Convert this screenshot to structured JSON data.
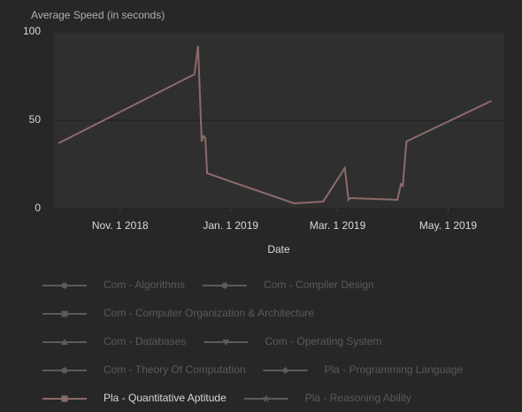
{
  "chart_data": {
    "type": "line",
    "title": "Average Speed (in seconds)",
    "x_label": "Date",
    "x": [
      "2018-09-28",
      "2018-12-12",
      "2018-12-14",
      "2018-12-16",
      "2018-12-17",
      "2018-12-18",
      "2018-12-19",
      "2019-02-05",
      "2019-02-21",
      "2019-03-05",
      "2019-03-07",
      "2019-03-08",
      "2019-04-03",
      "2019-04-05",
      "2019-04-06",
      "2019-04-08",
      "2019-05-25"
    ],
    "xlim": [
      "2018-09-25",
      "2019-06-01"
    ],
    "xticks": [
      {
        "value": "2018-11-01",
        "label": "Nov. 1 2018"
      },
      {
        "value": "2019-01-01",
        "label": "Jan. 1 2019"
      },
      {
        "value": "2019-03-01",
        "label": "Mar. 1 2019"
      },
      {
        "value": "2019-05-01",
        "label": "May. 1 2019"
      }
    ],
    "ylim": [
      0,
      100
    ],
    "yticks": [
      0,
      50,
      100
    ],
    "grid": true,
    "series": [
      {
        "name": "Com - Algorithms",
        "color": "#5a5a5a",
        "marker": "circle",
        "visible": false,
        "values": [
          null,
          null,
          null,
          null,
          null,
          null,
          null,
          null,
          null,
          null,
          null,
          null,
          null,
          null,
          null,
          null,
          null
        ]
      },
      {
        "name": "Com - Compiler Design",
        "color": "#5a5a5a",
        "marker": "circle",
        "visible": false,
        "values": [
          null,
          null,
          null,
          null,
          null,
          null,
          null,
          null,
          null,
          null,
          null,
          null,
          null,
          null,
          null,
          null,
          null
        ]
      },
      {
        "name": "Com - Computer Organization & Architecture",
        "color": "#5a5a5a",
        "marker": "square",
        "visible": false,
        "values": [
          null,
          null,
          null,
          null,
          null,
          null,
          null,
          null,
          null,
          null,
          null,
          null,
          null,
          null,
          null,
          null,
          null
        ]
      },
      {
        "name": "Com - Databases",
        "color": "#5a5a5a",
        "marker": "triangle",
        "visible": false,
        "values": [
          null,
          null,
          null,
          null,
          null,
          null,
          null,
          null,
          null,
          null,
          null,
          null,
          null,
          null,
          null,
          null,
          null
        ]
      },
      {
        "name": "Com - Operating System",
        "color": "#5a5a5a",
        "marker": "triangle-down",
        "visible": false,
        "values": [
          null,
          null,
          null,
          null,
          null,
          null,
          null,
          null,
          null,
          null,
          null,
          null,
          null,
          null,
          null,
          null,
          null
        ]
      },
      {
        "name": "Com - Theory Of Computation",
        "color": "#5a5a5a",
        "marker": "circle",
        "visible": false,
        "values": [
          null,
          null,
          null,
          null,
          null,
          null,
          null,
          null,
          null,
          null,
          null,
          null,
          null,
          null,
          null,
          null,
          null
        ]
      },
      {
        "name": "Pla - Programming Language",
        "color": "#5a5a5a",
        "marker": "diamond",
        "visible": false,
        "values": [
          null,
          null,
          null,
          null,
          null,
          null,
          null,
          null,
          null,
          null,
          null,
          null,
          null,
          null,
          null,
          null,
          null
        ]
      },
      {
        "name": "Pla - Quantitative Aptitude",
        "color": "#8c6b6b",
        "marker": "square",
        "visible": true,
        "values": [
          37,
          76,
          92,
          38,
          41,
          40,
          20,
          3,
          4,
          23,
          5,
          6,
          5,
          14,
          13,
          38,
          61
        ]
      },
      {
        "name": "Pla - Reasoning Ability",
        "color": "#5a5a5a",
        "marker": "star",
        "visible": false,
        "values": [
          null,
          null,
          null,
          null,
          null,
          null,
          null,
          null,
          null,
          null,
          null,
          null,
          null,
          null,
          null,
          null,
          null
        ]
      }
    ]
  }
}
